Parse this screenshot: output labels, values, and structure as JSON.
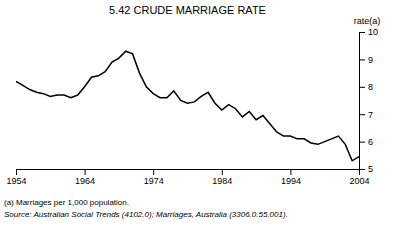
{
  "chart_data": {
    "type": "line",
    "title": "5.42   CRUDE MARRIAGE RATE",
    "y_label": "rate(a)",
    "annotations": [
      "(a) Marriages per 1,000 population.",
      "Source: Australian Social Trends (4102.0); Marriages, Australia (3306.0.55.001)."
    ],
    "color": "#000000",
    "x": [
      1954,
      1955,
      1956,
      1957,
      1958,
      1959,
      1960,
      1961,
      1962,
      1963,
      1964,
      1965,
      1966,
      1967,
      1968,
      1969,
      1970,
      1971,
      1972,
      1973,
      1974,
      1975,
      1976,
      1977,
      1978,
      1979,
      1980,
      1981,
      1982,
      1983,
      1984,
      1985,
      1986,
      1987,
      1988,
      1989,
      1990,
      1991,
      1992,
      1993,
      1994,
      1995,
      1996,
      1997,
      1998,
      1999,
      2000,
      2001,
      2002,
      2003,
      2004
    ],
    "values": [
      8.2,
      8.05,
      7.9,
      7.8,
      7.75,
      7.65,
      7.7,
      7.7,
      7.6,
      7.7,
      8.0,
      8.35,
      8.4,
      8.55,
      8.9,
      9.05,
      9.3,
      9.2,
      8.5,
      8.0,
      7.75,
      7.6,
      7.6,
      7.85,
      7.5,
      7.4,
      7.45,
      7.65,
      7.8,
      7.4,
      7.15,
      7.35,
      7.2,
      6.9,
      7.1,
      6.8,
      6.95,
      6.65,
      6.35,
      6.2,
      6.2,
      6.1,
      6.1,
      5.95,
      5.9,
      6.0,
      6.1,
      6.2,
      5.9,
      5.3,
      5.45
    ],
    "xlim": [
      1954,
      2004
    ],
    "xticks": [
      1954,
      1964,
      1974,
      1984,
      1994,
      2004
    ],
    "ylim": [
      5,
      10
    ],
    "yticks": [
      5,
      6,
      7,
      8,
      9,
      10
    ],
    "grid": false
  }
}
